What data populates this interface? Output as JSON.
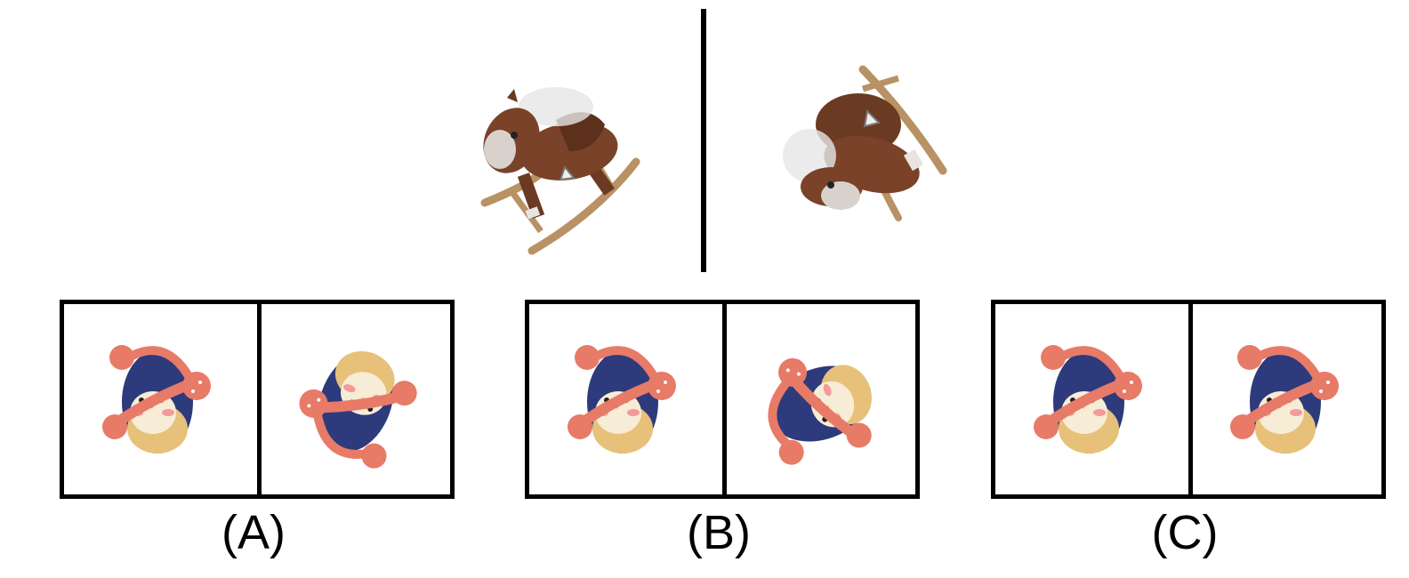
{
  "options": [
    {
      "label": "(A)"
    },
    {
      "label": "(B)"
    },
    {
      "label": "(C)"
    }
  ],
  "colors": {
    "horse_body": "#6b3a22",
    "horse_face": "#d9d2cc",
    "rocker_wood": "#b89264",
    "penguin_body": "#2d3a7c",
    "penguin_belly": "#f7ecd6",
    "penguin_bottom": "#e7c179",
    "earmuff": "#e87a68"
  }
}
